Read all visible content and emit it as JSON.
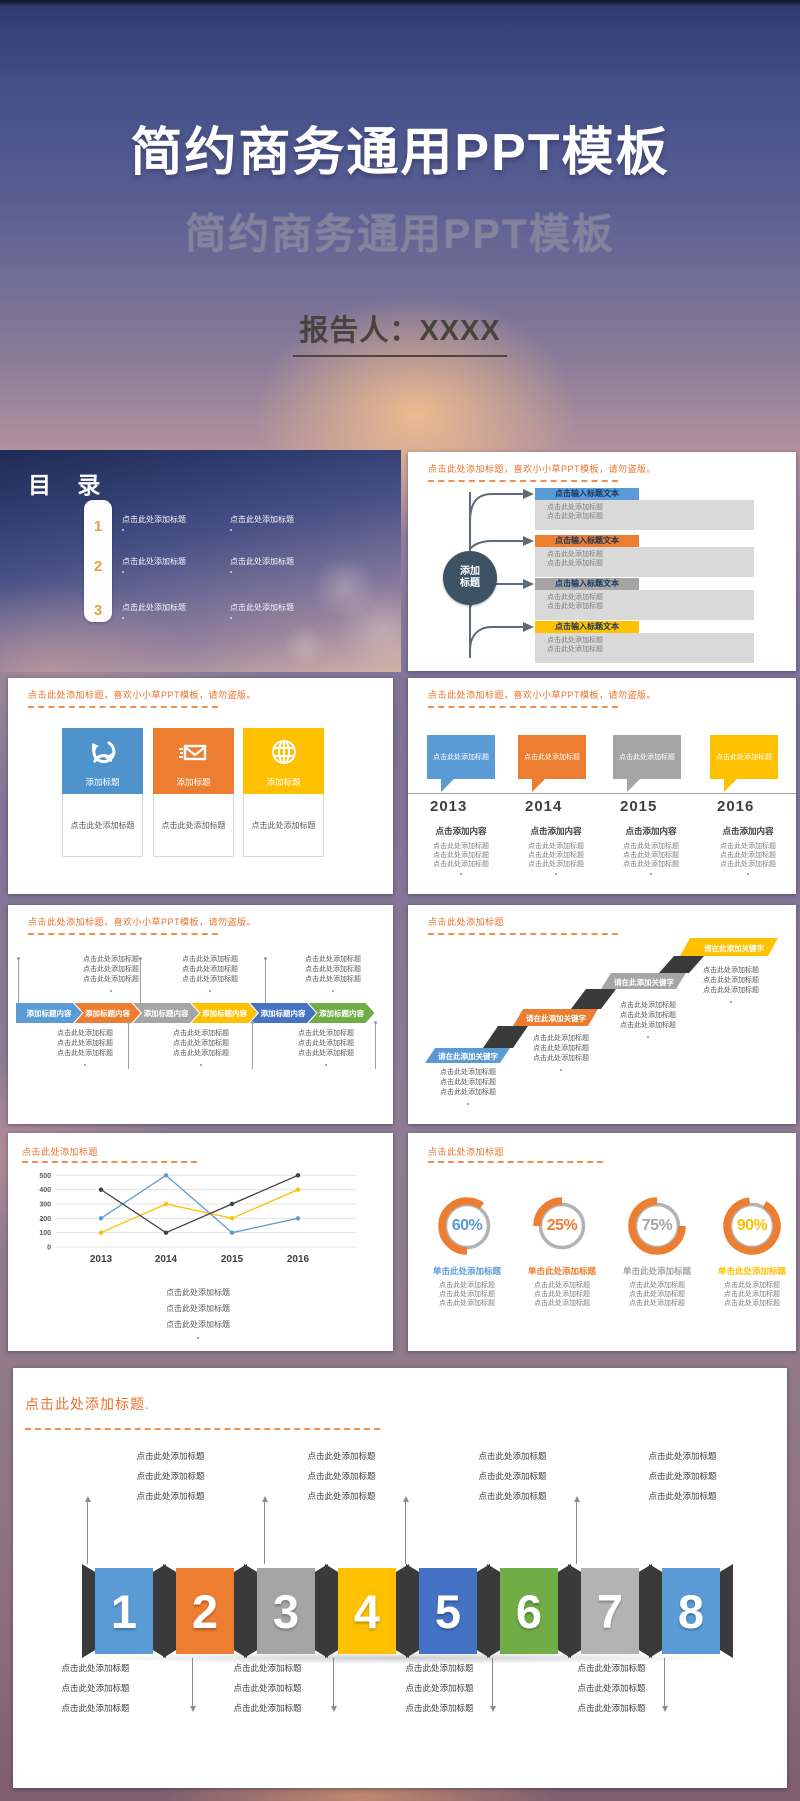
{
  "cover": {
    "title": "简约商务通用PPT模板",
    "subtitle": "简约商务通用PPT模板",
    "presenter": "报告人：XXXX"
  },
  "headings": {
    "long": "点击此处添加标题，喜欢小小草PPT模板，请勿盗版。",
    "short": "点击此处添加标题",
    "bottom": "点击此处添加标题."
  },
  "placeholders": {
    "line": "点击此处添加标题",
    "add_content": "点击添加内容",
    "input_title": "点击输入标题文本",
    "add_title": "添加标题",
    "keyword": "请在此添加关键字",
    "chevron": "添加标题内容",
    "click_here": "单击此处添加标题"
  },
  "toc": {
    "title": "目 录",
    "numbers": [
      "1",
      "2",
      "3"
    ],
    "item": "点击此处添加标题"
  },
  "palette": {
    "blue": "#5b9bd5",
    "orange": "#ed7d31",
    "gray": "#a5a5a5",
    "yellow": "#ffc000",
    "green": "#70ad47",
    "blue2": "#4472c4",
    "navy": "#3e5266",
    "heading": "#e8722d",
    "body_gray": "#d9d9d9",
    "dark_side": "#3a3a3a"
  },
  "arrow_bars": {
    "colors": [
      "#5b9bd5",
      "#ed7d31",
      "#a5a5a5",
      "#ffc000"
    ]
  },
  "cards": {
    "colors": [
      "#4f93cd",
      "#ed7d31",
      "#ffc000"
    ],
    "icons": [
      "recycle-icon",
      "mail-send-icon",
      "globe-icon"
    ]
  },
  "timeline": {
    "years": [
      "2013",
      "2014",
      "2015",
      "2016"
    ],
    "colors": [
      "#5b9bd5",
      "#ed7d31",
      "#a5a5a5",
      "#ffc000"
    ]
  },
  "chevrons": {
    "colors": [
      "#5b9bd5",
      "#ed7d31",
      "#a5a5a5",
      "#ffc000",
      "#4472c4",
      "#70ad47"
    ]
  },
  "stairs": {
    "colors": [
      "#5b9bd5",
      "#ed7d31",
      "#a5a5a5",
      "#ffc000"
    ]
  },
  "chart_data": {
    "type": "line",
    "x": [
      "2013",
      "2014",
      "2015",
      "2016"
    ],
    "series": [
      {
        "name": "blue-series",
        "color": "#5b9bd5",
        "values": [
          200,
          500,
          100,
          200
        ]
      },
      {
        "name": "yellow-series",
        "color": "#ffc000",
        "values": [
          100,
          300,
          200,
          400
        ]
      },
      {
        "name": "dark-series",
        "color": "#404040",
        "values": [
          400,
          100,
          300,
          500
        ]
      }
    ],
    "ylim": [
      0,
      500
    ],
    "yticks": [
      0,
      100,
      200,
      300,
      400,
      500
    ],
    "grid": true,
    "legend": "none",
    "title": "",
    "xlabel": "",
    "ylabel": ""
  },
  "donuts": {
    "arc_color": "#ed7d31",
    "ring_color": "#b3b3b3",
    "items": [
      {
        "pct": "60%",
        "value": 60,
        "text_color": "#5b9bd5"
      },
      {
        "pct": "25%",
        "value": 25,
        "text_color": "#ed7d31"
      },
      {
        "pct": "75%",
        "value": 75,
        "text_color": "#a5a5a5"
      },
      {
        "pct": "90%",
        "value": 90,
        "text_color": "#ffc000"
      }
    ]
  },
  "blocks": {
    "numbers": [
      "1",
      "2",
      "3",
      "4",
      "5",
      "6",
      "7",
      "8"
    ],
    "colors": [
      "#5b9bd5",
      "#ed7d31",
      "#a5a5a5",
      "#ffc000",
      "#4472c4",
      "#70ad47",
      "#b3b3b3",
      "#5b9bd5"
    ]
  }
}
